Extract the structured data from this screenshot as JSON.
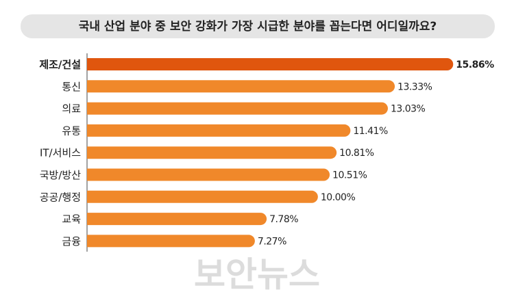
{
  "chart_data": {
    "type": "hbar",
    "title": "국내 산업 분야 중 보안 강화가 가장 시급한 분야를 꼽는다면 어디일까요?",
    "categories": [
      "제조/건설",
      "통신",
      "의료",
      "유통",
      "IT/서비스",
      "국방/방산",
      "공공/행정",
      "교육",
      "금융"
    ],
    "values": [
      15.86,
      13.33,
      13.03,
      11.41,
      10.81,
      10.51,
      10.0,
      7.78,
      7.27
    ],
    "value_labels": [
      "15.86%",
      "13.33%",
      "13.03%",
      "11.41%",
      "10.81%",
      "10.51%",
      "10.00%",
      "7.78%",
      "7.27%"
    ],
    "colors": [
      "#e0560e",
      "#f0882a",
      "#f0882a",
      "#f0882a",
      "#f0882a",
      "#f0882a",
      "#f0882a",
      "#f0882a",
      "#f0882a"
    ],
    "xlim": [
      0,
      16
    ],
    "watermark": "보안뉴스"
  }
}
